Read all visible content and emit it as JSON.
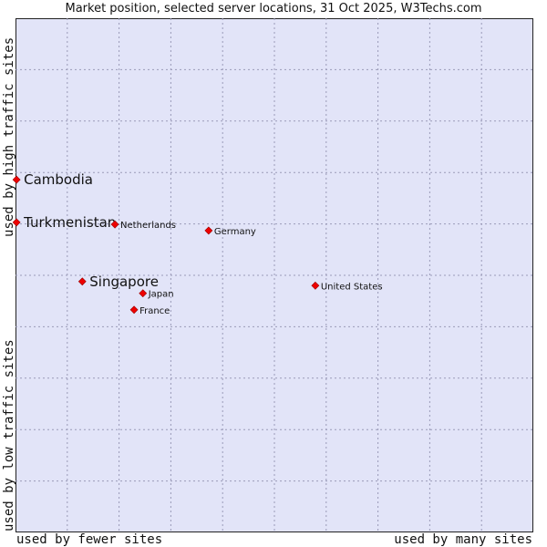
{
  "chart_data": {
    "type": "scatter",
    "title": "Market position, selected server locations, 31 Oct 2025, W3Techs.com",
    "xlabel_low": "used by fewer sites",
    "xlabel_high": "used by many sites",
    "ylabel_low": "used by low traffic sites",
    "ylabel_high": "used by high traffic sites",
    "xlim": [
      0,
      100
    ],
    "ylim": [
      0,
      100
    ],
    "grid": true,
    "point_color": "#ee0000",
    "points": [
      {
        "label": "Cambodia",
        "x": 0.2,
        "y": 68.6,
        "highlight": true
      },
      {
        "label": "Turkmenistan",
        "x": 0.2,
        "y": 60.3,
        "highlight": true
      },
      {
        "label": "Singapore",
        "x": 12.9,
        "y": 48.8,
        "highlight": true
      },
      {
        "label": "Netherlands",
        "x": 19.2,
        "y": 59.9,
        "highlight": false
      },
      {
        "label": "Germany",
        "x": 37.3,
        "y": 58.7,
        "highlight": false
      },
      {
        "label": "United States",
        "x": 57.9,
        "y": 48.0,
        "highlight": false
      },
      {
        "label": "Japan",
        "x": 24.6,
        "y": 46.5,
        "highlight": false
      },
      {
        "label": "France",
        "x": 22.9,
        "y": 43.3,
        "highlight": false
      }
    ]
  }
}
